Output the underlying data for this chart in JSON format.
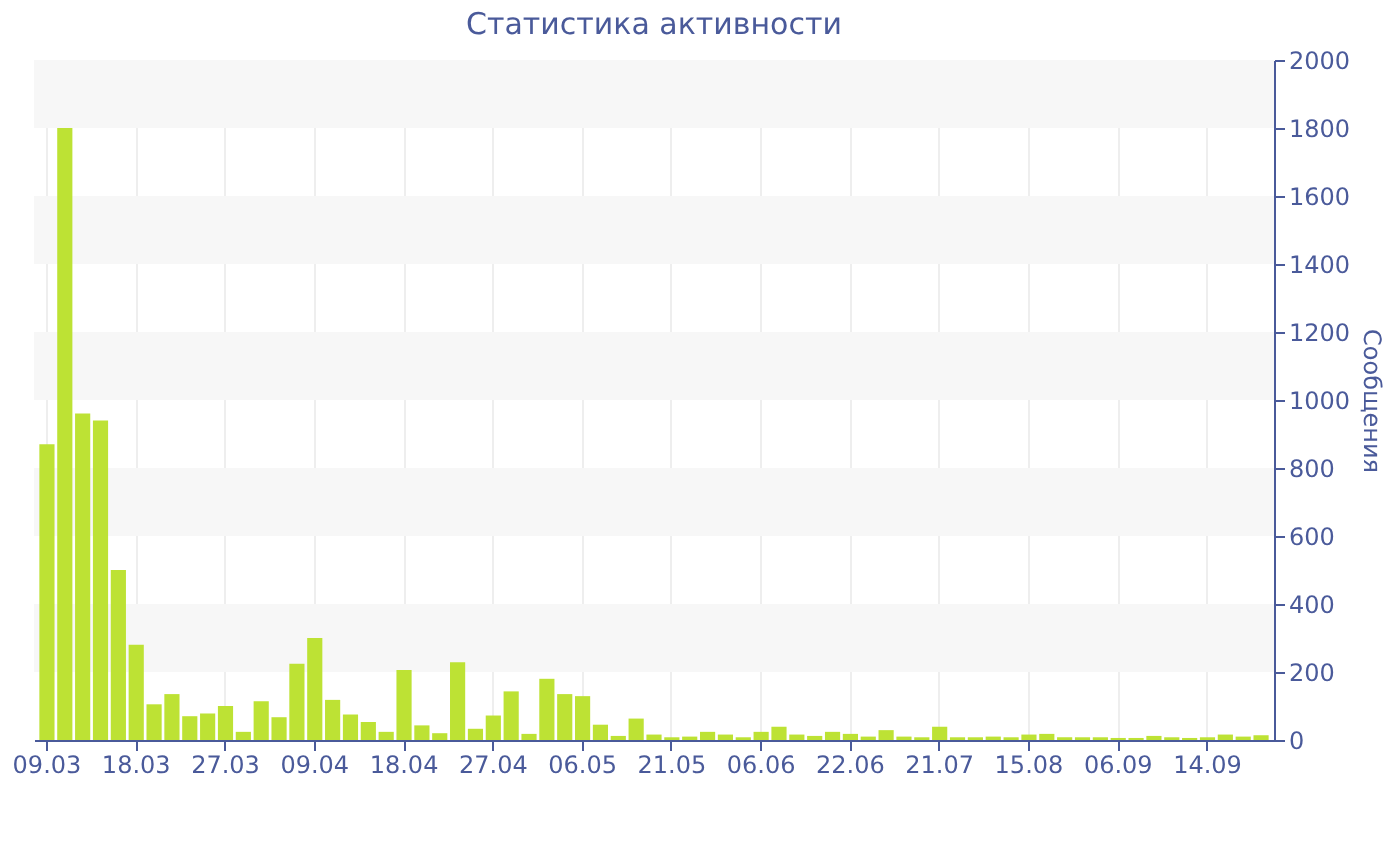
{
  "chart_data": {
    "type": "bar",
    "title": "Статистика активности",
    "ylabel": "Сообщения",
    "categories": [
      "09.03",
      null,
      null,
      null,
      null,
      "18.03",
      null,
      null,
      null,
      null,
      "27.03",
      null,
      null,
      null,
      null,
      "09.04",
      null,
      null,
      null,
      null,
      "18.04",
      null,
      null,
      null,
      null,
      "27.04",
      null,
      null,
      null,
      null,
      "06.05",
      null,
      null,
      null,
      null,
      "21.05",
      null,
      null,
      null,
      null,
      "06.06",
      null,
      null,
      null,
      null,
      "22.06",
      null,
      null,
      null,
      null,
      "21.07",
      null,
      null,
      null,
      null,
      "15.08",
      null,
      null,
      null,
      null,
      "06.09",
      null,
      null,
      null,
      null,
      "14.09",
      null,
      null,
      null
    ],
    "values": [
      870,
      1800,
      960,
      940,
      500,
      280,
      105,
      135,
      70,
      78,
      100,
      24,
      114,
      67,
      224,
      300,
      118,
      75,
      53,
      24,
      206,
      43,
      20,
      229,
      33,
      72,
      143,
      18,
      180,
      135,
      129,
      45,
      12,
      63,
      16,
      8,
      10,
      24,
      16,
      8,
      24,
      39,
      16,
      12,
      24,
      18,
      10,
      29,
      10,
      8,
      39,
      8,
      8,
      10,
      8,
      16,
      18,
      8,
      8,
      8,
      6,
      6,
      12,
      8,
      6,
      8,
      16,
      10,
      14
    ],
    "color": "#bde234",
    "ylim": [
      0,
      2000
    ],
    "yticks": [
      0,
      200,
      400,
      600,
      800,
      1000,
      1200,
      1400,
      1600,
      1800,
      2000
    ],
    "grid": "x",
    "bands": [
      {
        "axis": "y",
        "from": 200,
        "to": 400,
        "color": "#f7f7f7"
      },
      {
        "axis": "y",
        "from": 600,
        "to": 800,
        "color": "#f7f7f7"
      },
      {
        "axis": "y",
        "from": 1000,
        "to": 1200,
        "color": "#f7f7f7"
      },
      {
        "axis": "y",
        "from": 1400,
        "to": 1600,
        "color": "#f7f7f7"
      },
      {
        "axis": "y",
        "from": 1800,
        "to": 2000,
        "color": "#f7f7f7"
      }
    ]
  }
}
